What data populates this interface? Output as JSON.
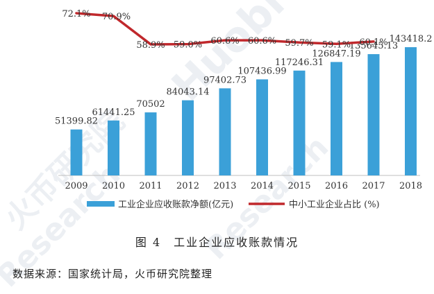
{
  "watermark": {
    "text_brand": "Huobi",
    "text_cn": "火币研究院",
    "text_en": "Research"
  },
  "chart_data": {
    "type": "bar+line",
    "categories": [
      "2009",
      "2010",
      "2011",
      "2012",
      "2013",
      "2014",
      "2015",
      "2016",
      "2017",
      "2018"
    ],
    "series": [
      {
        "name": "工业企业应收账款净额(亿元)",
        "type": "bar",
        "color": "#3ba0d8",
        "values": [
          51399.82,
          61441.25,
          70502,
          84043.14,
          97402.73,
          107436.99,
          117246.31,
          126847.19,
          135645.13,
          143418.2
        ],
        "labels": [
          "51399.82",
          "61441.25",
          "70502",
          "84043.14",
          "97402.73",
          "107436.99",
          "117246.31",
          "126847.19",
          "135645.13",
          "143418.2"
        ]
      },
      {
        "name": "中小工业企业占比 (%)",
        "type": "line",
        "color": "#c0282c",
        "values": [
          72.1,
          70.9,
          58.9,
          59.0,
          60.6,
          60.6,
          59.7,
          59.1,
          60.1,
          null
        ],
        "labels": [
          "72.1%",
          "70.9%",
          "58.9%",
          "59.0%",
          "60.6%",
          "60.6%",
          "59.7%",
          "59.1%",
          "60.1%",
          ""
        ]
      }
    ]
  },
  "caption": "图 4　工业企业应收账款情况",
  "source": "数据来源：国家统计局，火币研究院整理"
}
